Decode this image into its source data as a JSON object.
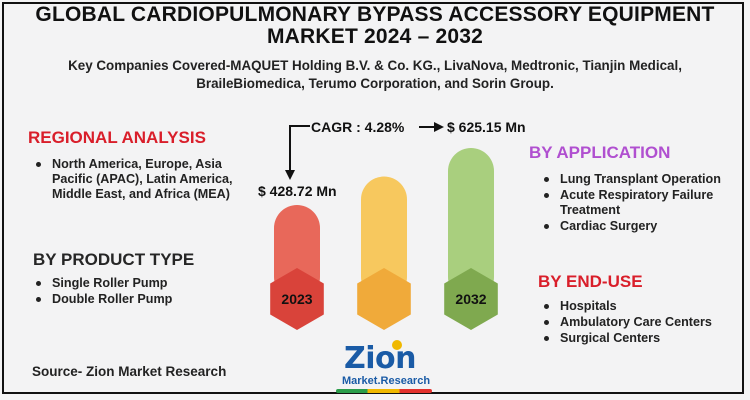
{
  "header": {
    "title_line1": "GLOBAL CARDIOPULMONARY BYPASS ACCESSORY EQUIPMENT",
    "title_line2": "MARKET 2024 – 2032",
    "subtitle_line1": "Key Companies Covered-MAQUET Holding B.V. & Co. KG., LivaNova, Medtronic, Tianjin Medical,",
    "subtitle_line2": "BraileBiomedica, Terumo Corporation, and Sorin Group."
  },
  "regional": {
    "title": "REGIONAL ANALYSIS",
    "items": [
      "North America, Europe, Asia Pacific (APAC), Latin America, Middle East, and Africa (MEA)"
    ]
  },
  "product_type": {
    "title": "BY PRODUCT TYPE",
    "items": [
      "Single Roller Pump",
      "Double Roller Pump"
    ]
  },
  "application": {
    "title": "BY APPLICATION",
    "items": [
      "Lung Transplant Operation",
      "Acute Respiratory Failure Treatment",
      "Cardiac Surgery"
    ]
  },
  "end_use": {
    "title": "BY END-USE",
    "items": [
      "Hospitals",
      "Ambulatory Care Centers",
      "Surgical Centers"
    ]
  },
  "chart_data": {
    "type": "bar",
    "cagr_label": "CAGR : 4.28%",
    "series": [
      {
        "year": "2023",
        "value": 428.72,
        "label": "$ 428.72  Mn",
        "color": "#e8685a",
        "hex_color": "#d9433a"
      },
      {
        "year": "",
        "value": 527,
        "label": "",
        "color": "#f7c85e",
        "hex_color": "#f0aa3a"
      },
      {
        "year": "2032",
        "value": 625.15,
        "label": "$ 625.15 Mn",
        "color": "#a9cf7e",
        "hex_color": "#7fa94f"
      }
    ]
  },
  "footer": {
    "source": "Source- Zion Market Research",
    "logo_main": "Zion",
    "logo_sub": "Market.Research"
  }
}
